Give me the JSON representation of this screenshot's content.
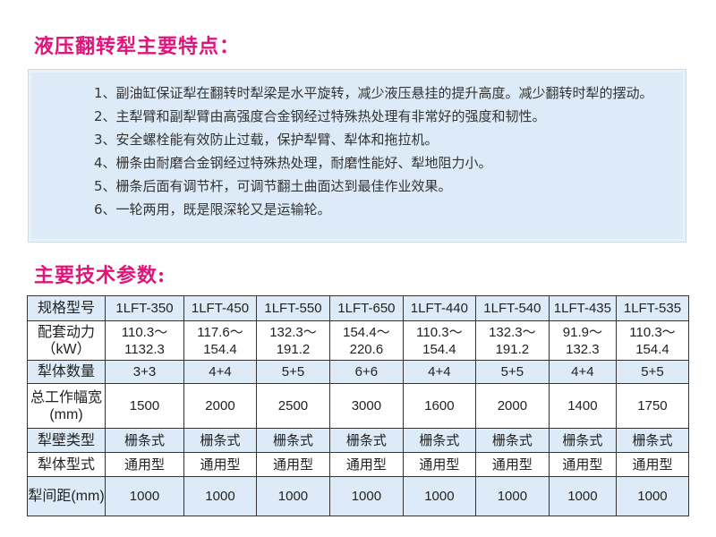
{
  "features": {
    "title": "液压翻转犁主要特点：",
    "items": [
      "1、副油缸保证犁在翻转时犁梁是水平旋转，减少液压悬挂的提升高度。减少翻转时犁的摆动。",
      "2、主犁臂和副犁臂由高强度合金钢经过特殊热处理有非常好的强度和韧性。",
      "3、安全螺栓能有效防止过载，保护犁臂、犁体和拖拉机。",
      "4、栅条由耐磨合金钢经过特殊热处理，耐磨性能好、犁地阻力小。",
      "5、栅条后面有调节杆，可调节翻土曲面达到最佳作业效果。",
      "6、一轮两用，既是限深轮又是运输轮。"
    ]
  },
  "specs": {
    "title": "主要技术参数:",
    "rows": [
      {
        "label": "规格型号",
        "cells": [
          "1LFT-350",
          "1LFT-450",
          "1LFT-550",
          "1LFT-650",
          "1LFT-440",
          "1LFT-540",
          "1LFT-435",
          "1LFT-535"
        ]
      },
      {
        "label": "配套动力（kW）",
        "cells": [
          "110.3～1132.3",
          "117.6～154.4",
          "132.3～191.2",
          "154.4～220.6",
          "110.3～154.4",
          "132.3～191.2",
          "91.9～132.3",
          "110.3～154.4"
        ]
      },
      {
        "label": "犁体数量",
        "cells": [
          "3+3",
          "4+4",
          "5+5",
          "6+6",
          "4+4",
          "5+5",
          "4+4",
          "5+5"
        ]
      },
      {
        "label": "总工作幅宽(mm)",
        "cells": [
          "1500",
          "2000",
          "2500",
          "3000",
          "1600",
          "2000",
          "1400",
          "1750"
        ]
      },
      {
        "label": "犁壁类型",
        "cells": [
          "栅条式",
          "栅条式",
          "栅条式",
          "栅条式",
          "栅条式",
          "栅条式",
          "栅条式",
          "栅条式"
        ]
      },
      {
        "label": "犁体型式",
        "cells": [
          "通用型",
          "通用型",
          "通用型",
          "通用型",
          "通用型",
          "通用型",
          "通用型",
          "通用型"
        ]
      },
      {
        "label": "犁间距(mm)",
        "cells": [
          "1000",
          "1000",
          "1000",
          "1000",
          "1000",
          "1000",
          "1000",
          "1000"
        ]
      }
    ]
  },
  "colors": {
    "title": "#e0157a",
    "shade": "#dcebf7"
  }
}
